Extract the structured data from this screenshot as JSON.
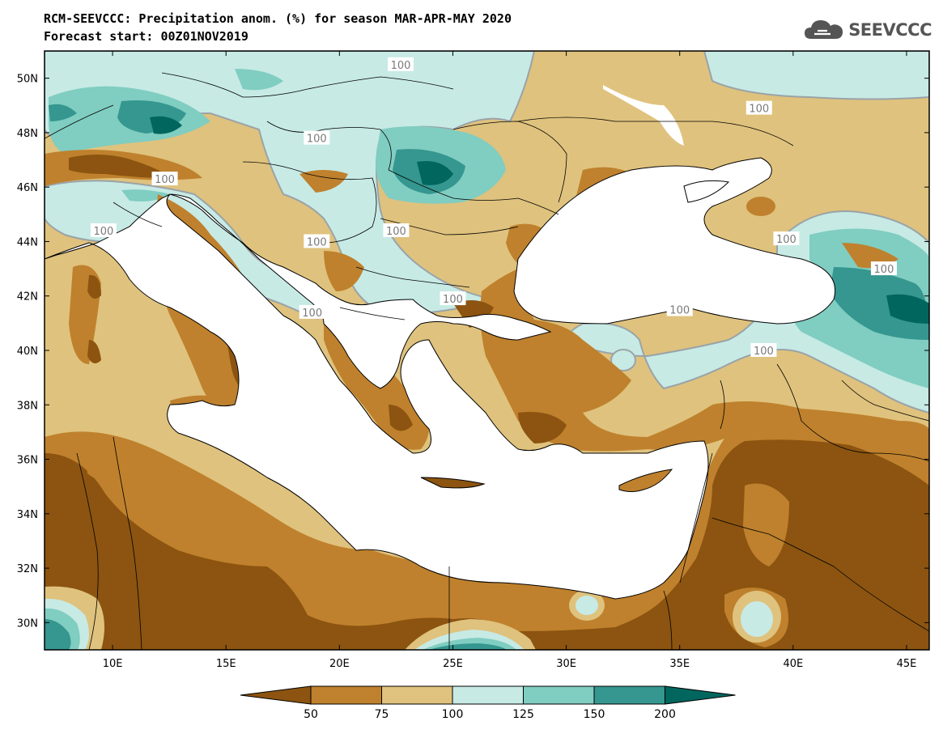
{
  "header": {
    "title": "RCM-SEEVCCC: Precipitation anom. (%) for season MAR-APR-MAY 2020",
    "subtitle": "Forecast start: 00Z01NOV2019"
  },
  "logo": {
    "text": "SEEVCCC",
    "icon": "cloud-icon",
    "color": "#555555"
  },
  "map": {
    "lon_range": [
      7,
      46
    ],
    "lat_range": [
      29,
      51
    ],
    "lon_ticks": [
      {
        "value": 10,
        "label": "10E"
      },
      {
        "value": 15,
        "label": "15E"
      },
      {
        "value": 20,
        "label": "20E"
      },
      {
        "value": 25,
        "label": "25E"
      },
      {
        "value": 30,
        "label": "30E"
      },
      {
        "value": 35,
        "label": "35E"
      },
      {
        "value": 40,
        "label": "40E"
      },
      {
        "value": 45,
        "label": "45E"
      }
    ],
    "lat_ticks": [
      {
        "value": 30,
        "label": "30N"
      },
      {
        "value": 32,
        "label": "32N"
      },
      {
        "value": 34,
        "label": "34N"
      },
      {
        "value": 36,
        "label": "36N"
      },
      {
        "value": 38,
        "label": "38N"
      },
      {
        "value": 40,
        "label": "40N"
      },
      {
        "value": 42,
        "label": "42N"
      },
      {
        "value": 44,
        "label": "44N"
      },
      {
        "value": 46,
        "label": "46N"
      },
      {
        "value": 48,
        "label": "48N"
      },
      {
        "value": 50,
        "label": "50N"
      }
    ],
    "contour_label": "100",
    "contour_labels": [
      {
        "lon": 22.7,
        "lat": 50.5
      },
      {
        "lon": 38.5,
        "lat": 48.9
      },
      {
        "lon": 19.0,
        "lat": 47.8
      },
      {
        "lon": 12.3,
        "lat": 46.3
      },
      {
        "lon": 9.6,
        "lat": 44.4
      },
      {
        "lon": 19.0,
        "lat": 44.0
      },
      {
        "lon": 22.5,
        "lat": 44.4
      },
      {
        "lon": 25.0,
        "lat": 41.9
      },
      {
        "lon": 18.8,
        "lat": 41.4
      },
      {
        "lon": 39.7,
        "lat": 44.1
      },
      {
        "lon": 44.0,
        "lat": 43.0
      },
      {
        "lon": 35.0,
        "lat": 41.5
      },
      {
        "lon": 38.7,
        "lat": 40.0
      }
    ]
  },
  "colorbar": {
    "labels": [
      "50",
      "75",
      "100",
      "125",
      "150",
      "200"
    ],
    "colors": [
      "#8c5410",
      "#bf812d",
      "#dfc27d",
      "#c7eae5",
      "#80cdc1",
      "#35978f",
      "#01665e"
    ]
  }
}
